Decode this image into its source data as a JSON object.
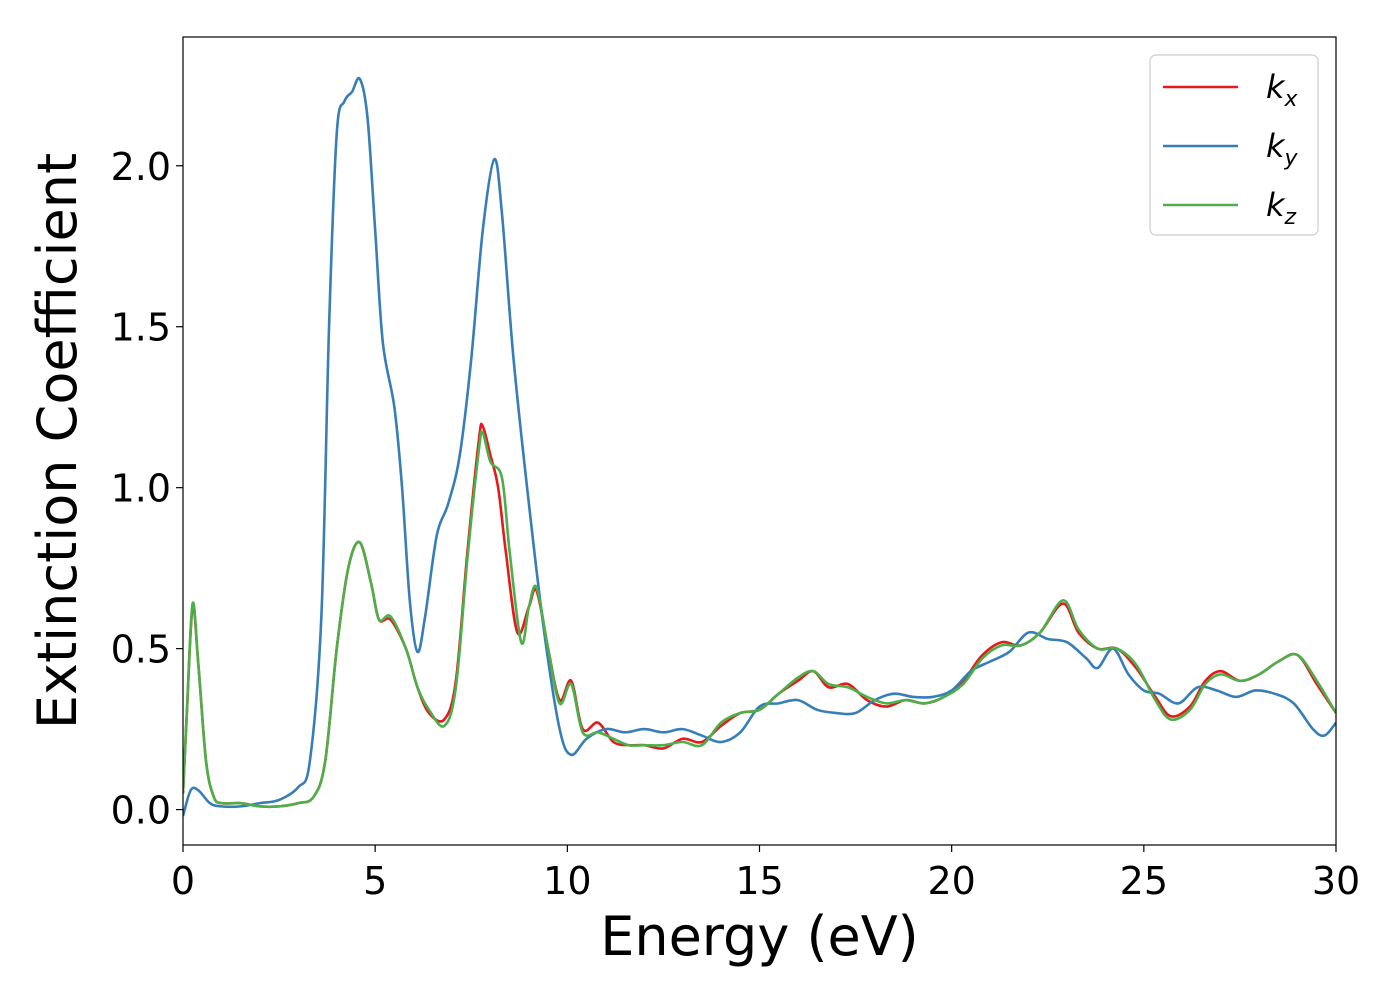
{
  "chart_data": {
    "type": "line",
    "title": "",
    "xlabel": "Energy (eV)",
    "ylabel": "Extinction Coefficient",
    "xlim": [
      0,
      30
    ],
    "ylim": [
      -0.11,
      2.4
    ],
    "xticks": [
      0,
      5,
      10,
      15,
      20,
      25,
      30
    ],
    "xtick_labels": [
      "0",
      "5",
      "10",
      "15",
      "20",
      "25",
      "30"
    ],
    "yticks": [
      0.0,
      0.5,
      1.0,
      1.5,
      2.0
    ],
    "ytick_labels": [
      "0.0",
      "0.5",
      "1.0",
      "1.5",
      "2.0"
    ],
    "grid": false,
    "legend_position": "top-right",
    "series": [
      {
        "name_base": "k",
        "name_sub": "x",
        "color": "#e41a1c",
        "points": [
          [
            0,
            0.05
          ],
          [
            0.1,
            0.3
          ],
          [
            0.25,
            0.63
          ],
          [
            0.4,
            0.45
          ],
          [
            0.6,
            0.15
          ],
          [
            0.8,
            0.04
          ],
          [
            1.0,
            0.02
          ],
          [
            1.5,
            0.02
          ],
          [
            2.0,
            0.01
          ],
          [
            2.5,
            0.01
          ],
          [
            3.0,
            0.02
          ],
          [
            3.4,
            0.04
          ],
          [
            3.7,
            0.15
          ],
          [
            4.0,
            0.5
          ],
          [
            4.3,
            0.75
          ],
          [
            4.6,
            0.83
          ],
          [
            4.9,
            0.7
          ],
          [
            5.1,
            0.59
          ],
          [
            5.4,
            0.59
          ],
          [
            5.8,
            0.5
          ],
          [
            6.1,
            0.38
          ],
          [
            6.4,
            0.3
          ],
          [
            6.8,
            0.28
          ],
          [
            7.1,
            0.4
          ],
          [
            7.4,
            0.8
          ],
          [
            7.7,
            1.15
          ],
          [
            7.8,
            1.19
          ],
          [
            8.0,
            1.1
          ],
          [
            8.2,
            1.0
          ],
          [
            8.4,
            0.8
          ],
          [
            8.7,
            0.55
          ],
          [
            9.0,
            0.63
          ],
          [
            9.2,
            0.68
          ],
          [
            9.5,
            0.5
          ],
          [
            9.8,
            0.34
          ],
          [
            10.1,
            0.4
          ],
          [
            10.4,
            0.25
          ],
          [
            10.8,
            0.27
          ],
          [
            11.2,
            0.21
          ],
          [
            11.6,
            0.2
          ],
          [
            12.0,
            0.2
          ],
          [
            12.5,
            0.19
          ],
          [
            13.0,
            0.22
          ],
          [
            13.5,
            0.21
          ],
          [
            14.0,
            0.26
          ],
          [
            14.5,
            0.3
          ],
          [
            15.0,
            0.31
          ],
          [
            15.5,
            0.36
          ],
          [
            16.0,
            0.4
          ],
          [
            16.4,
            0.43
          ],
          [
            16.8,
            0.38
          ],
          [
            17.3,
            0.39
          ],
          [
            17.8,
            0.34
          ],
          [
            18.3,
            0.32
          ],
          [
            18.8,
            0.34
          ],
          [
            19.3,
            0.33
          ],
          [
            19.8,
            0.35
          ],
          [
            20.3,
            0.4
          ],
          [
            20.8,
            0.48
          ],
          [
            21.3,
            0.52
          ],
          [
            21.8,
            0.51
          ],
          [
            22.3,
            0.55
          ],
          [
            22.9,
            0.64
          ],
          [
            23.3,
            0.55
          ],
          [
            23.8,
            0.5
          ],
          [
            24.3,
            0.5
          ],
          [
            24.8,
            0.44
          ],
          [
            25.3,
            0.35
          ],
          [
            25.7,
            0.29
          ],
          [
            26.2,
            0.32
          ],
          [
            26.6,
            0.4
          ],
          [
            27.0,
            0.43
          ],
          [
            27.5,
            0.4
          ],
          [
            28.0,
            0.42
          ],
          [
            28.5,
            0.46
          ],
          [
            29.0,
            0.48
          ],
          [
            29.5,
            0.39
          ],
          [
            30.0,
            0.3
          ]
        ]
      },
      {
        "name_base": "k",
        "name_sub": "y",
        "color": "#377eb8",
        "points": [
          [
            0,
            -0.02
          ],
          [
            0.2,
            0.06
          ],
          [
            0.4,
            0.06
          ],
          [
            0.7,
            0.02
          ],
          [
            1.0,
            0.01
          ],
          [
            1.5,
            0.01
          ],
          [
            2.0,
            0.02
          ],
          [
            2.5,
            0.03
          ],
          [
            3.0,
            0.07
          ],
          [
            3.3,
            0.15
          ],
          [
            3.6,
            0.6
          ],
          [
            3.8,
            1.5
          ],
          [
            4.0,
            2.1
          ],
          [
            4.2,
            2.2
          ],
          [
            4.4,
            2.23
          ],
          [
            4.6,
            2.27
          ],
          [
            4.8,
            2.15
          ],
          [
            5.0,
            1.8
          ],
          [
            5.2,
            1.45
          ],
          [
            5.5,
            1.25
          ],
          [
            5.7,
            1.0
          ],
          [
            5.9,
            0.65
          ],
          [
            6.1,
            0.49
          ],
          [
            6.3,
            0.6
          ],
          [
            6.6,
            0.85
          ],
          [
            6.9,
            0.95
          ],
          [
            7.2,
            1.1
          ],
          [
            7.5,
            1.4
          ],
          [
            7.8,
            1.8
          ],
          [
            8.1,
            2.02
          ],
          [
            8.3,
            1.85
          ],
          [
            8.6,
            1.4
          ],
          [
            9.0,
            0.95
          ],
          [
            9.4,
            0.55
          ],
          [
            9.8,
            0.25
          ],
          [
            10.1,
            0.17
          ],
          [
            10.5,
            0.22
          ],
          [
            11.0,
            0.25
          ],
          [
            11.5,
            0.24
          ],
          [
            12.0,
            0.25
          ],
          [
            12.5,
            0.24
          ],
          [
            13.0,
            0.25
          ],
          [
            13.5,
            0.23
          ],
          [
            14.0,
            0.21
          ],
          [
            14.5,
            0.24
          ],
          [
            15.0,
            0.32
          ],
          [
            15.5,
            0.33
          ],
          [
            16.0,
            0.34
          ],
          [
            16.5,
            0.31
          ],
          [
            17.0,
            0.3
          ],
          [
            17.5,
            0.3
          ],
          [
            18.0,
            0.34
          ],
          [
            18.5,
            0.36
          ],
          [
            19.0,
            0.35
          ],
          [
            19.5,
            0.35
          ],
          [
            20.0,
            0.37
          ],
          [
            20.5,
            0.43
          ],
          [
            21.0,
            0.46
          ],
          [
            21.5,
            0.49
          ],
          [
            22.0,
            0.55
          ],
          [
            22.5,
            0.53
          ],
          [
            23.0,
            0.52
          ],
          [
            23.5,
            0.47
          ],
          [
            23.8,
            0.44
          ],
          [
            24.2,
            0.5
          ],
          [
            24.6,
            0.42
          ],
          [
            25.0,
            0.37
          ],
          [
            25.4,
            0.36
          ],
          [
            25.9,
            0.33
          ],
          [
            26.4,
            0.38
          ],
          [
            26.9,
            0.37
          ],
          [
            27.4,
            0.35
          ],
          [
            27.9,
            0.37
          ],
          [
            28.4,
            0.36
          ],
          [
            28.9,
            0.33
          ],
          [
            29.4,
            0.25
          ],
          [
            29.7,
            0.23
          ],
          [
            30.0,
            0.27
          ]
        ]
      },
      {
        "name_base": "k",
        "name_sub": "z",
        "color": "#4daf4a",
        "points": [
          [
            0,
            0.05
          ],
          [
            0.1,
            0.3
          ],
          [
            0.25,
            0.64
          ],
          [
            0.4,
            0.45
          ],
          [
            0.6,
            0.15
          ],
          [
            0.8,
            0.04
          ],
          [
            1.0,
            0.02
          ],
          [
            1.5,
            0.02
          ],
          [
            2.0,
            0.01
          ],
          [
            2.5,
            0.01
          ],
          [
            3.0,
            0.02
          ],
          [
            3.4,
            0.04
          ],
          [
            3.7,
            0.15
          ],
          [
            4.0,
            0.5
          ],
          [
            4.3,
            0.75
          ],
          [
            4.6,
            0.83
          ],
          [
            4.9,
            0.7
          ],
          [
            5.1,
            0.59
          ],
          [
            5.4,
            0.6
          ],
          [
            5.8,
            0.5
          ],
          [
            6.1,
            0.38
          ],
          [
            6.4,
            0.31
          ],
          [
            6.8,
            0.26
          ],
          [
            7.1,
            0.38
          ],
          [
            7.4,
            0.78
          ],
          [
            7.7,
            1.12
          ],
          [
            7.8,
            1.17
          ],
          [
            8.0,
            1.08
          ],
          [
            8.3,
            1.03
          ],
          [
            8.5,
            0.8
          ],
          [
            8.8,
            0.52
          ],
          [
            9.0,
            0.63
          ],
          [
            9.2,
            0.69
          ],
          [
            9.5,
            0.5
          ],
          [
            9.8,
            0.33
          ],
          [
            10.1,
            0.39
          ],
          [
            10.4,
            0.24
          ],
          [
            10.8,
            0.24
          ],
          [
            11.2,
            0.22
          ],
          [
            11.6,
            0.2
          ],
          [
            12.0,
            0.2
          ],
          [
            12.5,
            0.2
          ],
          [
            13.0,
            0.21
          ],
          [
            13.5,
            0.2
          ],
          [
            14.0,
            0.27
          ],
          [
            14.5,
            0.3
          ],
          [
            15.0,
            0.31
          ],
          [
            15.5,
            0.36
          ],
          [
            16.0,
            0.41
          ],
          [
            16.4,
            0.43
          ],
          [
            16.8,
            0.39
          ],
          [
            17.3,
            0.38
          ],
          [
            17.8,
            0.35
          ],
          [
            18.3,
            0.33
          ],
          [
            18.8,
            0.34
          ],
          [
            19.3,
            0.33
          ],
          [
            19.8,
            0.35
          ],
          [
            20.3,
            0.39
          ],
          [
            20.8,
            0.47
          ],
          [
            21.3,
            0.51
          ],
          [
            21.8,
            0.51
          ],
          [
            22.3,
            0.55
          ],
          [
            22.9,
            0.65
          ],
          [
            23.3,
            0.56
          ],
          [
            23.8,
            0.5
          ],
          [
            24.3,
            0.5
          ],
          [
            24.8,
            0.45
          ],
          [
            25.3,
            0.34
          ],
          [
            25.7,
            0.28
          ],
          [
            26.2,
            0.31
          ],
          [
            26.6,
            0.39
          ],
          [
            27.0,
            0.42
          ],
          [
            27.5,
            0.4
          ],
          [
            28.0,
            0.42
          ],
          [
            28.5,
            0.46
          ],
          [
            29.0,
            0.48
          ],
          [
            29.5,
            0.4
          ],
          [
            30.0,
            0.3
          ]
        ]
      }
    ]
  }
}
